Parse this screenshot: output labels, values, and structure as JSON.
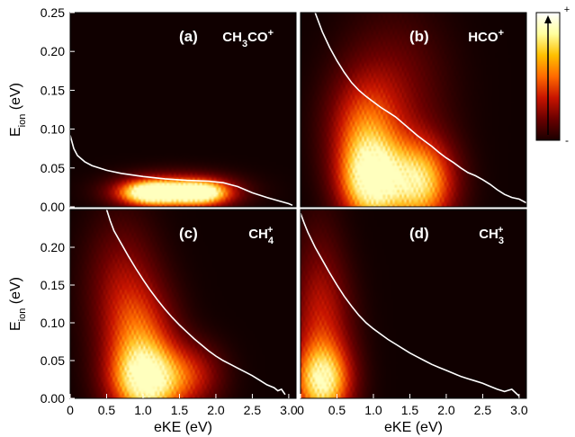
{
  "chart_data": [
    {
      "type": "heatmap",
      "panel_label": "(a)",
      "species": {
        "main": "CH",
        "sub1": "3",
        "mid": "CO",
        "sup": "+",
        "sub2": ""
      },
      "xlim": [
        0,
        3.1
      ],
      "ylim": [
        0,
        0.25
      ],
      "ylabel": {
        "main": "E",
        "sub": "ion",
        "tail": " (eV)"
      },
      "xlabel": "",
      "show_x_ticks": false,
      "show_y_ticks": true,
      "y_ticks": [
        "0.00",
        "0.05",
        "0.10",
        "0.15",
        "0.20",
        "0.25"
      ],
      "x_ticks": [],
      "blobs": [
        {
          "x": 1.1,
          "y": 0.018,
          "sx": 0.3,
          "sy": 0.011,
          "amp": 0.95
        },
        {
          "x": 1.8,
          "y": 0.018,
          "sx": 0.28,
          "sy": 0.011,
          "amp": 0.85
        },
        {
          "x": 1.45,
          "y": 0.02,
          "sx": 0.55,
          "sy": 0.016,
          "amp": 0.55
        }
      ],
      "profile": [
        [
          0.0,
          0.092
        ],
        [
          0.05,
          0.075
        ],
        [
          0.1,
          0.066
        ],
        [
          0.2,
          0.058
        ],
        [
          0.3,
          0.053
        ],
        [
          0.5,
          0.047
        ],
        [
          0.7,
          0.043
        ],
        [
          1.0,
          0.039
        ],
        [
          1.3,
          0.036
        ],
        [
          1.6,
          0.034
        ],
        [
          1.9,
          0.033
        ],
        [
          2.1,
          0.031
        ],
        [
          2.3,
          0.026
        ],
        [
          2.5,
          0.018
        ],
        [
          2.7,
          0.012
        ],
        [
          2.85,
          0.008
        ],
        [
          3.0,
          0.004
        ],
        [
          3.05,
          0.002
        ]
      ]
    },
    {
      "type": "heatmap",
      "panel_label": "(b)",
      "species": {
        "main": "HCO",
        "sub1": "",
        "mid": "",
        "sup": "+",
        "sub2": ""
      },
      "xlim": [
        0,
        3.1
      ],
      "ylim": [
        0,
        0.25
      ],
      "ylabel": {
        "main": "",
        "sub": "",
        "tail": ""
      },
      "xlabel": "",
      "show_x_ticks": false,
      "show_y_ticks": false,
      "y_ticks": [],
      "x_ticks": [],
      "blobs": [
        {
          "x": 0.95,
          "y": 0.03,
          "sx": 0.3,
          "sy": 0.04,
          "amp": 0.9
        },
        {
          "x": 1.65,
          "y": 0.03,
          "sx": 0.33,
          "sy": 0.04,
          "amp": 0.85
        },
        {
          "x": 0.85,
          "y": 0.1,
          "sx": 0.35,
          "sy": 0.05,
          "amp": 0.45
        },
        {
          "x": 1.3,
          "y": 0.15,
          "sx": 0.5,
          "sy": 0.07,
          "amp": 0.25
        }
      ],
      "profile": [
        [
          0.2,
          0.25
        ],
        [
          0.3,
          0.225
        ],
        [
          0.4,
          0.205
        ],
        [
          0.5,
          0.188
        ],
        [
          0.6,
          0.173
        ],
        [
          0.7,
          0.16
        ],
        [
          0.8,
          0.15
        ],
        [
          0.9,
          0.142
        ],
        [
          1.0,
          0.135
        ],
        [
          1.1,
          0.128
        ],
        [
          1.2,
          0.122
        ],
        [
          1.3,
          0.116
        ],
        [
          1.4,
          0.108
        ],
        [
          1.5,
          0.1
        ],
        [
          1.6,
          0.092
        ],
        [
          1.7,
          0.085
        ],
        [
          1.8,
          0.078
        ],
        [
          1.9,
          0.07
        ],
        [
          2.0,
          0.063
        ],
        [
          2.1,
          0.057
        ],
        [
          2.2,
          0.05
        ],
        [
          2.3,
          0.044
        ],
        [
          2.4,
          0.04
        ],
        [
          2.5,
          0.035
        ],
        [
          2.6,
          0.029
        ],
        [
          2.7,
          0.022
        ],
        [
          2.8,
          0.016
        ],
        [
          2.9,
          0.012
        ],
        [
          3.0,
          0.01
        ],
        [
          3.1,
          0.005
        ]
      ]
    },
    {
      "type": "heatmap",
      "panel_label": "(c)",
      "species": {
        "main": "CH",
        "sub1": "",
        "mid": "",
        "sup": "+",
        "sub2": "4"
      },
      "xlim": [
        0,
        3.1
      ],
      "ylim": [
        0,
        0.25
      ],
      "ylabel": {
        "main": "E",
        "sub": "ion",
        "tail": " (eV)"
      },
      "xlabel": "eKE (eV)",
      "show_x_ticks": true,
      "show_y_ticks": true,
      "y_ticks": [
        "0.00",
        "0.05",
        "0.10",
        "0.15",
        "0.20"
      ],
      "x_ticks": [
        "0",
        "0.5",
        "1.0",
        "1.5",
        "2.0",
        "2.5",
        "3.0"
      ],
      "blobs": [
        {
          "x": 1.05,
          "y": 0.02,
          "sx": 0.35,
          "sy": 0.035,
          "amp": 0.9
        },
        {
          "x": 0.95,
          "y": 0.08,
          "sx": 0.35,
          "sy": 0.05,
          "amp": 0.5
        },
        {
          "x": 0.7,
          "y": 0.16,
          "sx": 0.35,
          "sy": 0.06,
          "amp": 0.28
        },
        {
          "x": 1.7,
          "y": 0.03,
          "sx": 0.3,
          "sy": 0.03,
          "amp": 0.35
        }
      ],
      "profile": [
        [
          0.5,
          0.25
        ],
        [
          0.55,
          0.235
        ],
        [
          0.6,
          0.222
        ],
        [
          0.7,
          0.205
        ],
        [
          0.8,
          0.188
        ],
        [
          0.9,
          0.172
        ],
        [
          1.0,
          0.157
        ],
        [
          1.1,
          0.143
        ],
        [
          1.2,
          0.13
        ],
        [
          1.3,
          0.118
        ],
        [
          1.4,
          0.107
        ],
        [
          1.5,
          0.097
        ],
        [
          1.6,
          0.088
        ],
        [
          1.7,
          0.079
        ],
        [
          1.8,
          0.071
        ],
        [
          1.9,
          0.063
        ],
        [
          2.0,
          0.056
        ],
        [
          2.1,
          0.05
        ],
        [
          2.2,
          0.045
        ],
        [
          2.3,
          0.04
        ],
        [
          2.4,
          0.035
        ],
        [
          2.5,
          0.03
        ],
        [
          2.6,
          0.024
        ],
        [
          2.7,
          0.018
        ],
        [
          2.8,
          0.014
        ],
        [
          2.85,
          0.01
        ],
        [
          2.9,
          0.012
        ],
        [
          2.95,
          0.005
        ]
      ]
    },
    {
      "type": "heatmap",
      "panel_label": "(d)",
      "species": {
        "main": "CH",
        "sub1": "",
        "mid": "",
        "sup": "+",
        "sub2": "3"
      },
      "xlim": [
        0,
        3.1
      ],
      "ylim": [
        0,
        0.25
      ],
      "ylabel": {
        "main": "",
        "sub": "",
        "tail": ""
      },
      "xlabel": "eKE (eV)",
      "show_x_ticks": true,
      "show_y_ticks": false,
      "y_ticks": [],
      "x_ticks": [
        "0",
        "0.5",
        "1.0",
        "1.5",
        "2.0",
        "2.5",
        "3.0"
      ],
      "blobs": [
        {
          "x": 0.3,
          "y": 0.02,
          "sx": 0.28,
          "sy": 0.035,
          "amp": 0.85
        },
        {
          "x": 0.3,
          "y": 0.09,
          "sx": 0.3,
          "sy": 0.06,
          "amp": 0.35
        },
        {
          "x": 0.25,
          "y": 0.17,
          "sx": 0.25,
          "sy": 0.07,
          "amp": 0.15
        }
      ],
      "profile": [
        [
          0.0,
          0.245
        ],
        [
          0.05,
          0.232
        ],
        [
          0.1,
          0.22
        ],
        [
          0.2,
          0.2
        ],
        [
          0.3,
          0.183
        ],
        [
          0.4,
          0.166
        ],
        [
          0.5,
          0.15
        ],
        [
          0.6,
          0.135
        ],
        [
          0.7,
          0.122
        ],
        [
          0.8,
          0.11
        ],
        [
          0.9,
          0.1
        ],
        [
          1.0,
          0.092
        ],
        [
          1.1,
          0.085
        ],
        [
          1.2,
          0.078
        ],
        [
          1.3,
          0.072
        ],
        [
          1.4,
          0.066
        ],
        [
          1.5,
          0.06
        ],
        [
          1.6,
          0.055
        ],
        [
          1.7,
          0.05
        ],
        [
          1.8,
          0.045
        ],
        [
          1.9,
          0.041
        ],
        [
          2.0,
          0.037
        ],
        [
          2.1,
          0.033
        ],
        [
          2.2,
          0.029
        ],
        [
          2.3,
          0.026
        ],
        [
          2.4,
          0.023
        ],
        [
          2.5,
          0.02
        ],
        [
          2.6,
          0.016
        ],
        [
          2.7,
          0.012
        ],
        [
          2.8,
          0.009
        ],
        [
          2.9,
          0.012
        ],
        [
          3.0,
          0.003
        ]
      ]
    }
  ],
  "colorbar": {
    "top_label": "+",
    "bottom_label": "-",
    "colors": [
      "#1a0000",
      "#6a0000",
      "#c81400",
      "#ff6a00",
      "#ffc000",
      "#ffff9e",
      "#ffffff"
    ]
  }
}
